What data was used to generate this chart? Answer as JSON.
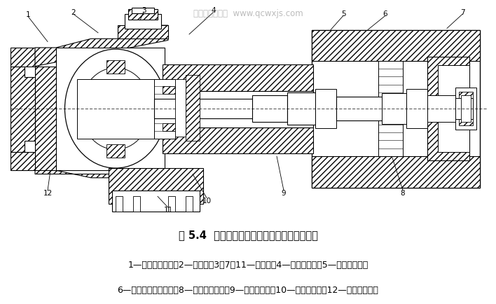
{
  "title": "图 5.4  上海桑塔纳轿车单级式主减速器剖面图",
  "line1": "1—变速器前壳体；2—差速器；3、7、11—调整垫；4—主动锥齿轮；5—变速器后壳；",
  "line2": "6—双列圆锥滚子轴承；8—圆柱滚子轴承；9—从动锥齿轮；10—主减速器盖；12—圆锥滚子轴承",
  "watermark": "汽车维修技术网  www.qcwxjs.com",
  "bg_color": "#ffffff",
  "title_fontsize": 10.5,
  "caption_fontsize": 9,
  "drawing_bg": "#ffffff"
}
